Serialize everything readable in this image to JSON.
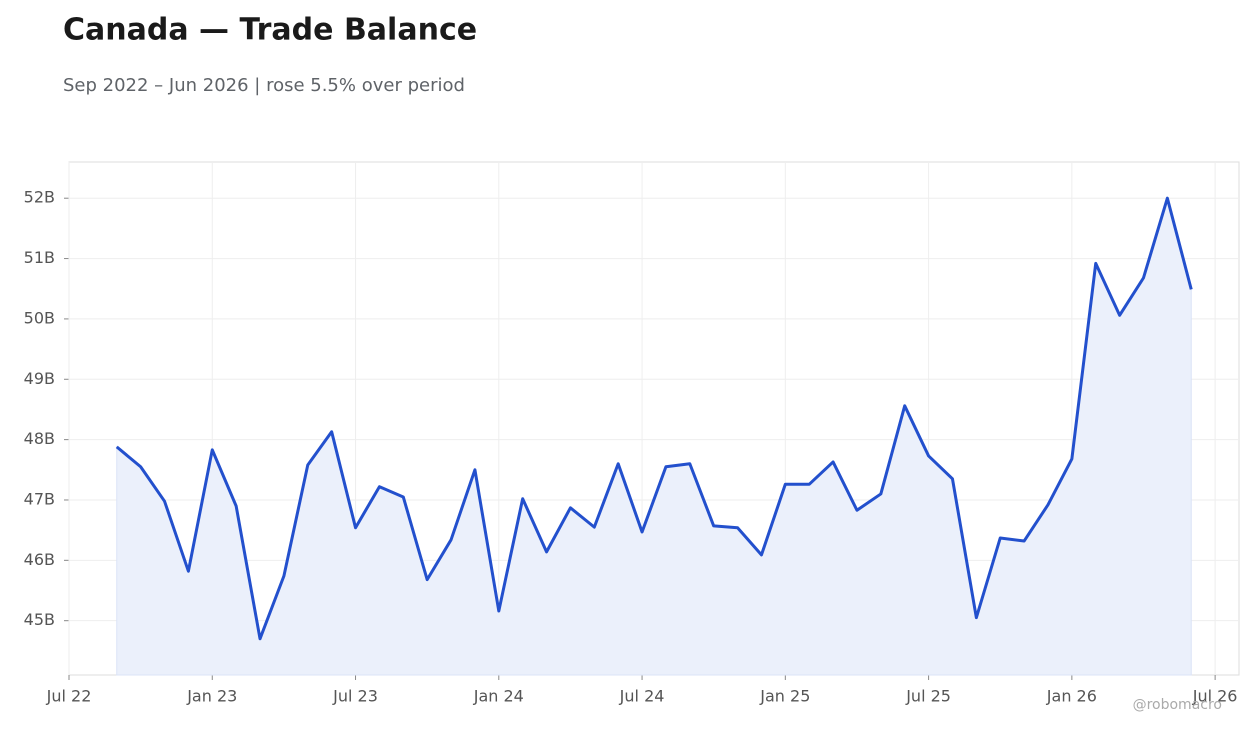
{
  "chart_data": {
    "type": "line",
    "title": "Canada — Trade Balance",
    "subtitle": "Sep 2022 – Jun 2026 | rose 5.5% over period",
    "watermark": "@robomacro",
    "x": [
      "2022-09",
      "2022-10",
      "2022-11",
      "2022-12",
      "2023-01",
      "2023-02",
      "2023-03",
      "2023-04",
      "2023-05",
      "2023-06",
      "2023-07",
      "2023-08",
      "2023-09",
      "2023-10",
      "2023-11",
      "2023-12",
      "2024-01",
      "2024-02",
      "2024-03",
      "2024-04",
      "2024-05",
      "2024-06",
      "2024-07",
      "2024-08",
      "2024-09",
      "2024-10",
      "2024-11",
      "2024-12",
      "2025-01",
      "2025-02",
      "2025-03",
      "2025-04",
      "2025-05",
      "2025-06",
      "2025-07",
      "2025-08",
      "2025-09",
      "2025-10",
      "2025-11",
      "2025-12",
      "2026-01",
      "2026-02",
      "2026-03",
      "2026-04",
      "2026-05",
      "2026-06"
    ],
    "series": [
      {
        "name": "Trade Balance",
        "color": "#2350cd",
        "fill": "#ebf0fb",
        "values": [
          47.88,
          47.55,
          46.98,
          45.82,
          47.83,
          46.9,
          44.7,
          45.74,
          47.58,
          48.13,
          46.54,
          47.22,
          47.05,
          45.68,
          46.34,
          47.5,
          45.16,
          47.02,
          46.14,
          46.87,
          46.55,
          47.6,
          46.47,
          47.55,
          47.6,
          46.57,
          46.54,
          46.09,
          47.26,
          47.26,
          47.63,
          46.83,
          47.1,
          48.56,
          47.73,
          47.35,
          45.05,
          46.37,
          46.32,
          46.92,
          47.68,
          50.92,
          50.06,
          50.68,
          52.0,
          50.49
        ]
      }
    ],
    "xlim": [
      "2022-07",
      "2026-08"
    ],
    "xticks": [
      {
        "value": "2022-07",
        "label": "Jul 22"
      },
      {
        "value": "2023-01",
        "label": "Jan 23"
      },
      {
        "value": "2023-07",
        "label": "Jul 23"
      },
      {
        "value": "2024-01",
        "label": "Jan 24"
      },
      {
        "value": "2024-07",
        "label": "Jul 24"
      },
      {
        "value": "2025-01",
        "label": "Jan 25"
      },
      {
        "value": "2025-07",
        "label": "Jul 25"
      },
      {
        "value": "2026-01",
        "label": "Jan 26"
      },
      {
        "value": "2026-07",
        "label": "Jul 26"
      }
    ],
    "ylim": [
      44.1,
      52.6
    ],
    "yticks": [
      {
        "value": 45,
        "label": "45B"
      },
      {
        "value": 46,
        "label": "46B"
      },
      {
        "value": 47,
        "label": "47B"
      },
      {
        "value": 48,
        "label": "48B"
      },
      {
        "value": 49,
        "label": "49B"
      },
      {
        "value": 50,
        "label": "50B"
      },
      {
        "value": 51,
        "label": "51B"
      },
      {
        "value": 52,
        "label": "52B"
      }
    ],
    "grid": true
  }
}
